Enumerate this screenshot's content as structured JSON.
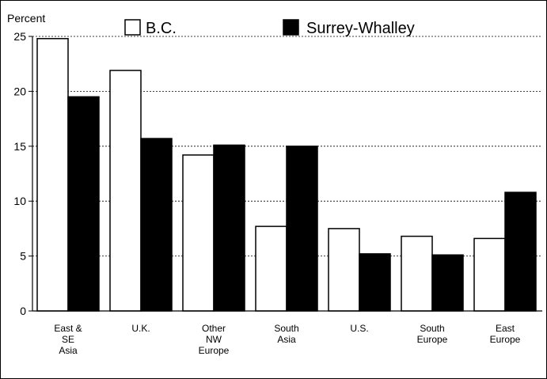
{
  "chart_data": {
    "type": "bar",
    "ylabel": "Percent",
    "xlabel": "",
    "ylim": [
      0,
      25
    ],
    "yticks": [
      0,
      5,
      10,
      15,
      20,
      25
    ],
    "grid": "horizontal dashed",
    "legend_position": "top",
    "categories": [
      [
        "East &",
        "SE",
        "Asia"
      ],
      [
        "U.K."
      ],
      [
        "Other",
        "NW",
        "Europe"
      ],
      [
        "South",
        "Asia"
      ],
      [
        "U.S."
      ],
      [
        "South",
        "Europe"
      ],
      [
        "East",
        "Europe"
      ]
    ],
    "series": [
      {
        "name": "B.C.",
        "color": "#ffffff",
        "values": [
          24.8,
          21.9,
          14.2,
          7.7,
          7.5,
          6.8,
          6.6
        ]
      },
      {
        "name": "Surrey-Whalley",
        "color": "#000000",
        "values": [
          19.5,
          15.7,
          15.1,
          15.0,
          5.2,
          5.1,
          10.8
        ]
      }
    ]
  }
}
